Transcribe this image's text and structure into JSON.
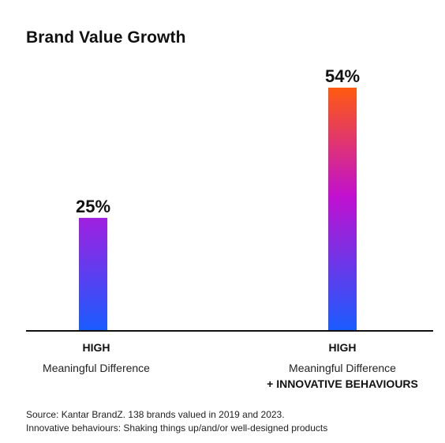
{
  "chart_data": {
    "type": "bar",
    "title": "Brand Value Growth",
    "categories": [
      {
        "main": "HIGH",
        "sub": "Meaningful Difference",
        "extra": ""
      },
      {
        "main": "HIGH",
        "sub": "Meaningful Difference",
        "extra": "+ INNOVATIVE BEHAVIOURS"
      }
    ],
    "values": [
      25,
      54
    ],
    "value_labels": [
      "25%",
      "54%"
    ],
    "ylim": [
      0,
      54
    ],
    "grid": false,
    "gradients": [
      {
        "bottom": "#1a5cff",
        "top": "#a020e0"
      },
      {
        "bottom": "#1a5cff",
        "mid": "#c010d0",
        "top": "#ff5a10"
      }
    ]
  },
  "footnotes": [
    "Source: Kantar BrandZ. 138 brands valued in 2019 and 2023.",
    "Innovative behaviours: Shaking things up/and/or well-designed products"
  ]
}
